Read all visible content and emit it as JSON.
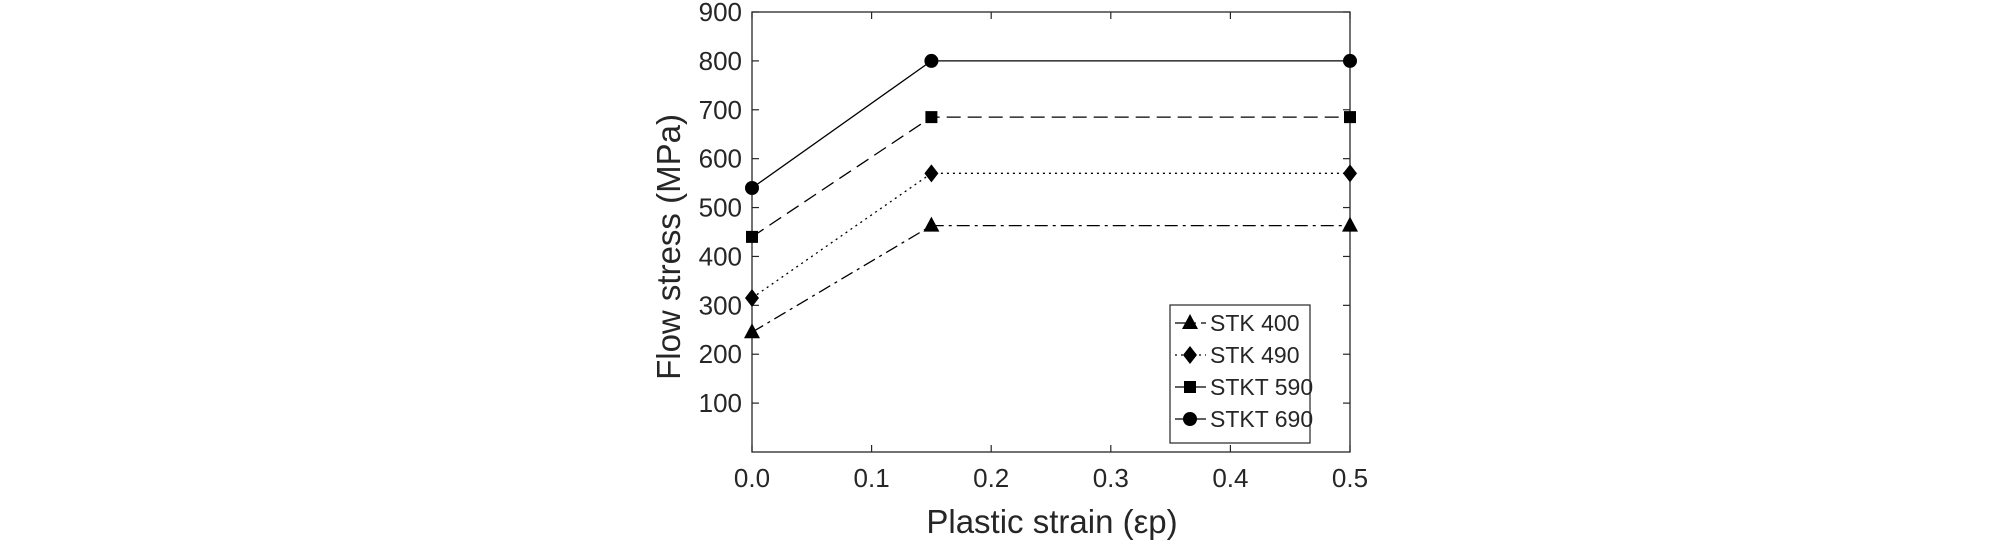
{
  "chart_data": {
    "type": "line",
    "xlabel": "Plastic strain (εp)",
    "ylabel": "Flow stress (MPa)",
    "xlim": [
      0,
      0.5
    ],
    "ylim": [
      0,
      900
    ],
    "x_ticks": [
      "0.0",
      "0.1",
      "0.2",
      "0.3",
      "0.4",
      "0.5"
    ],
    "y_ticks": [
      "100",
      "200",
      "300",
      "400",
      "500",
      "600",
      "700",
      "800",
      "900"
    ],
    "grid": false,
    "legend_position": "bottom-right",
    "series": [
      {
        "name": "STK 400",
        "marker": "triangle",
        "line_style": "dash-dot",
        "x": [
          0,
          0.15,
          0.5
        ],
        "y": [
          245,
          463,
          463
        ]
      },
      {
        "name": "STK 490",
        "marker": "diamond",
        "line_style": "dotted",
        "x": [
          0,
          0.15,
          0.5
        ],
        "y": [
          315,
          570,
          570
        ]
      },
      {
        "name": "STKT 590",
        "marker": "square",
        "line_style": "dashed",
        "x": [
          0,
          0.15,
          0.5
        ],
        "y": [
          440,
          685,
          685
        ]
      },
      {
        "name": "STKT 690",
        "marker": "circle",
        "line_style": "solid",
        "x": [
          0,
          0.15,
          0.5
        ],
        "y": [
          540,
          800,
          800
        ]
      }
    ]
  }
}
